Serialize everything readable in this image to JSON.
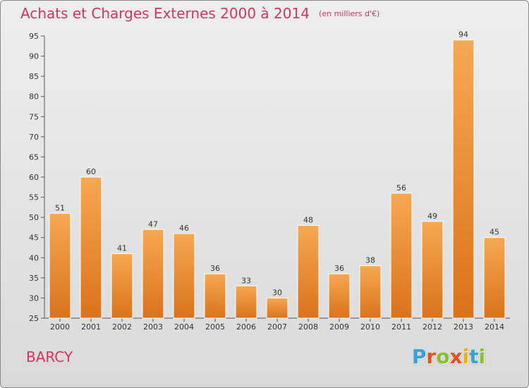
{
  "header": {
    "title": "Achats et Charges Externes 2000 à 2014",
    "unit": "(en milliers d'€)"
  },
  "footer": {
    "place": "BARCY",
    "logo_text": "Proxiti",
    "logo_colors": [
      "#3aa0d8",
      "#e8501c",
      "#8bbf2e",
      "#e8501c",
      "#f0b400",
      "#3aa0d8",
      "#8bbf2e"
    ]
  },
  "colors": {
    "title": "#d4345f",
    "bar_top": "#f7a852",
    "bar_bottom": "#d9731b",
    "axis": "#555555"
  },
  "chart_data": {
    "type": "bar",
    "title": "Achats et Charges Externes 2000 à 2014",
    "subtitle": "(en milliers d'€)",
    "xlabel": "",
    "ylabel": "",
    "categories": [
      "2000",
      "2001",
      "2002",
      "2003",
      "2004",
      "2005",
      "2006",
      "2007",
      "2008",
      "2009",
      "2010",
      "2011",
      "2012",
      "2013",
      "2014"
    ],
    "values": [
      51,
      60,
      41,
      47,
      46,
      36,
      33,
      30,
      48,
      36,
      38,
      56,
      49,
      94,
      45
    ],
    "ylim": [
      25,
      95
    ],
    "yticks": [
      25,
      30,
      35,
      40,
      45,
      50,
      55,
      60,
      65,
      70,
      75,
      80,
      85,
      90,
      95
    ],
    "grid": false,
    "legend": "none"
  }
}
